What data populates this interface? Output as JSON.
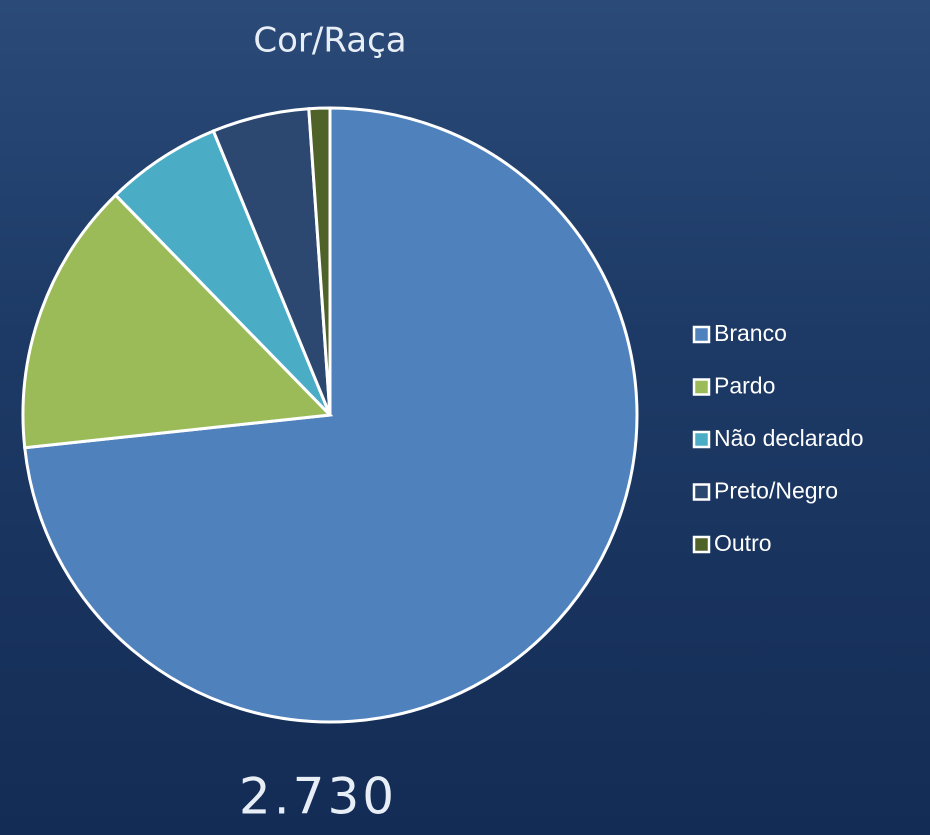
{
  "chart_data": {
    "type": "pie",
    "title": "Cor/Raça",
    "caption": "2.730",
    "categories": [
      "Branco",
      "Pardo",
      "Não declarado",
      "Preto/Negro",
      "Outro"
    ],
    "values": [
      73.3,
      14.4,
      6.1,
      5.1,
      1.1
    ],
    "colors": [
      "#4f81bd",
      "#9bbb59",
      "#4bacc6",
      "#2c4770",
      "#4f6228"
    ],
    "legend": "right"
  }
}
